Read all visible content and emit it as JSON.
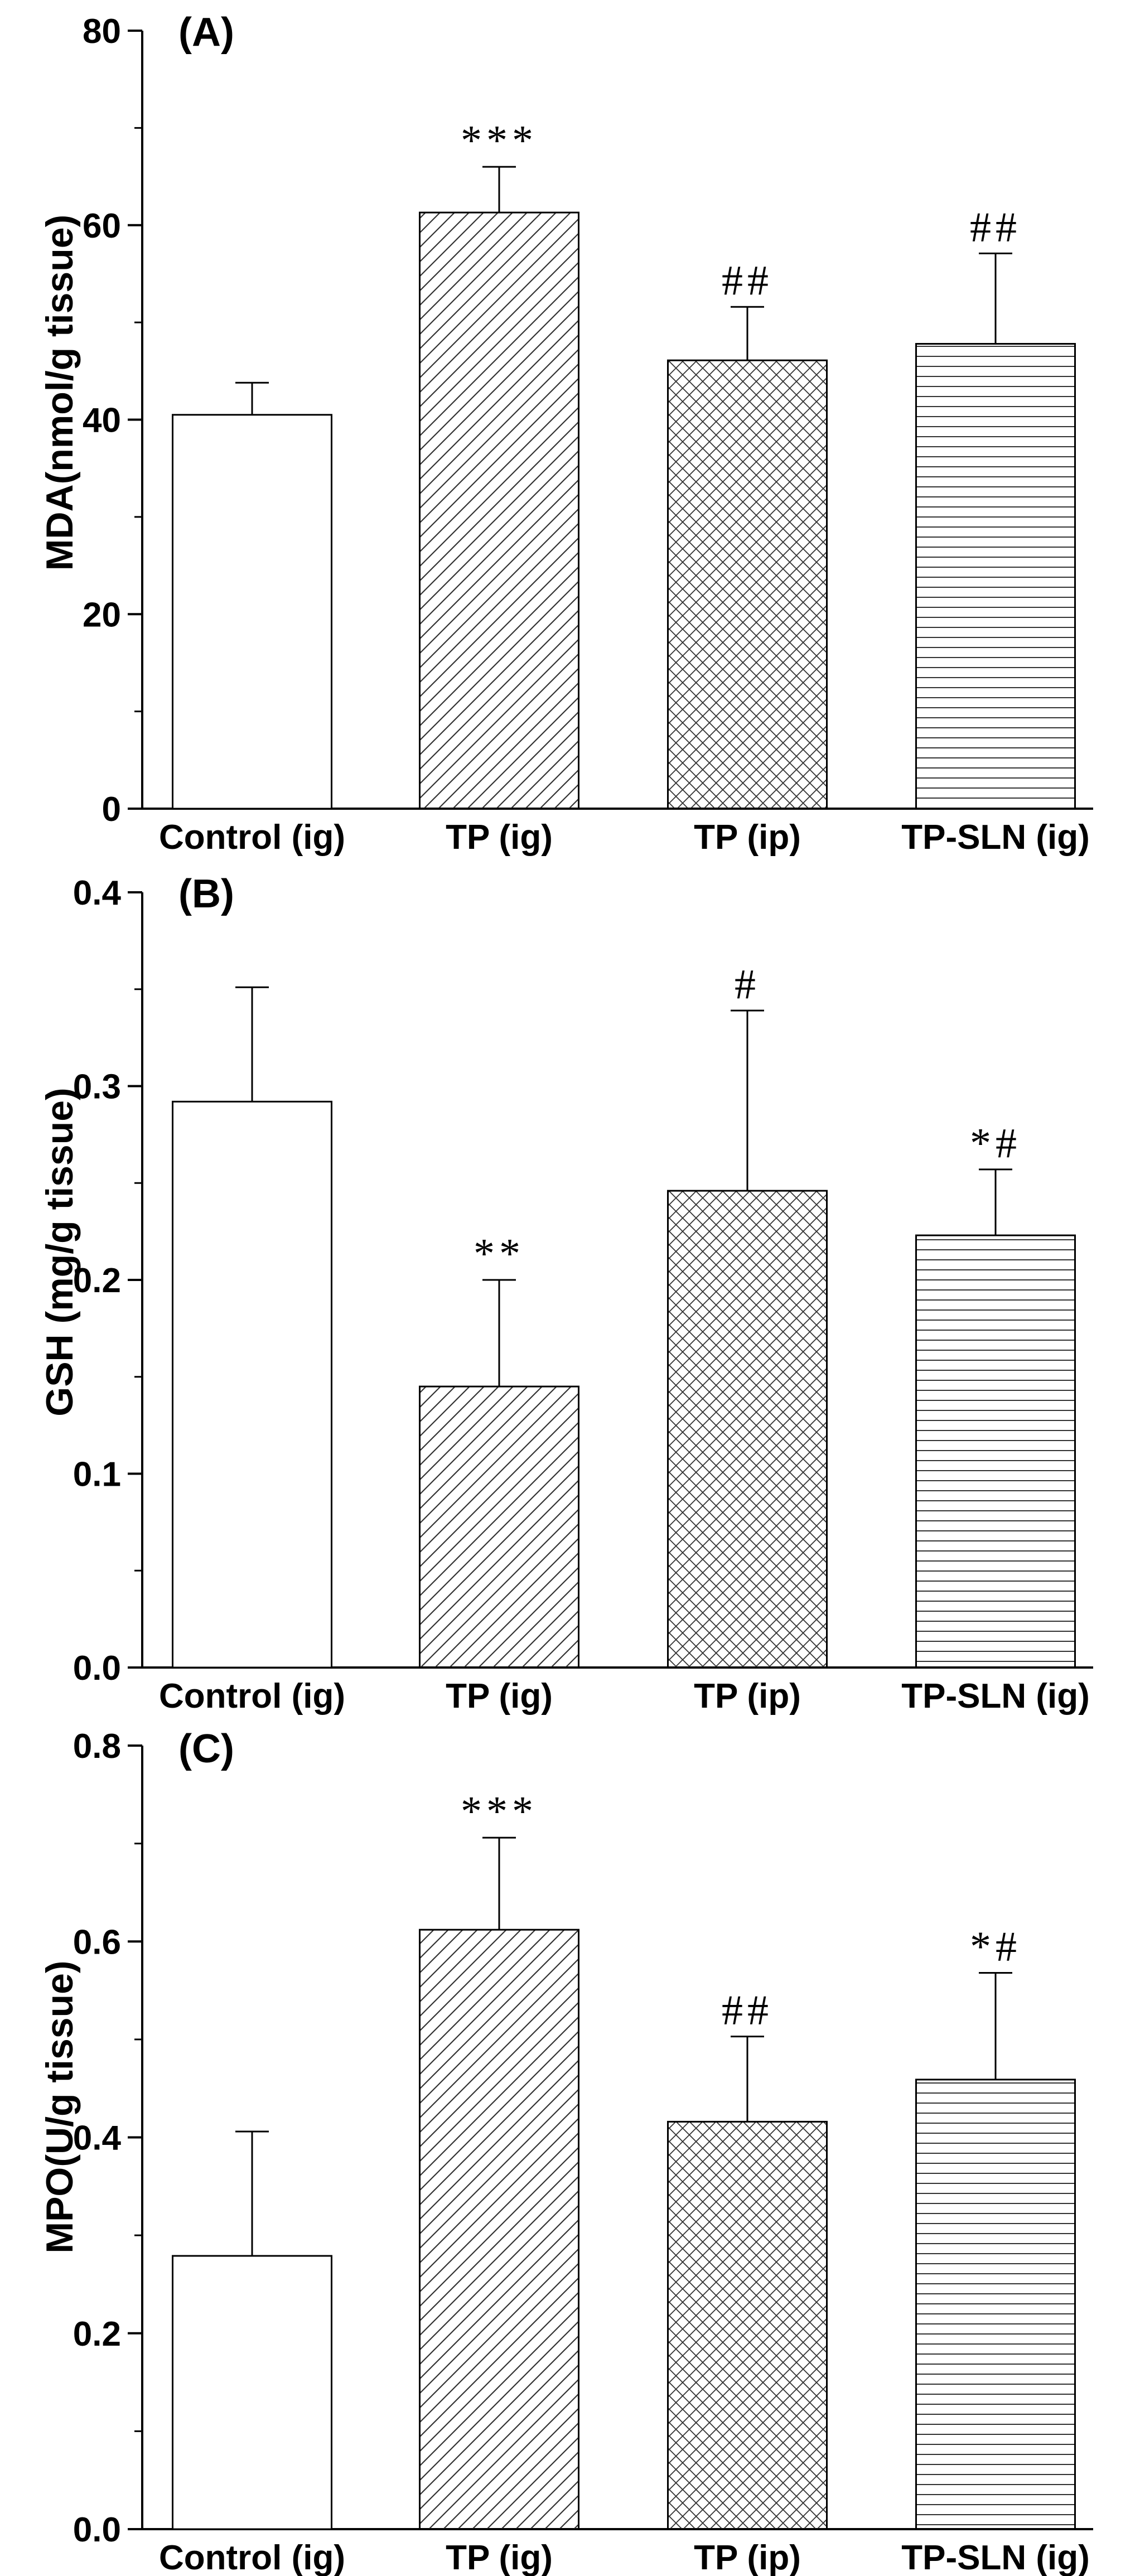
{
  "chart_data": [
    {
      "type": "bar",
      "panel": "(A)",
      "ylabel": "MDA(nmol/g tissue)",
      "ylim": [
        0,
        80
      ],
      "yticks": [
        0,
        20,
        40,
        60,
        80
      ],
      "ytick_labels": [
        "0",
        "20",
        "40",
        "60",
        "80"
      ],
      "minor_step": 10,
      "categories": [
        "Control (ig)",
        "TP (ig)",
        "TP (ip)",
        "TP-SLN (ig)"
      ],
      "values": [
        40.5,
        61.3,
        46.1,
        47.8
      ],
      "errors": [
        3.3,
        4.7,
        5.5,
        9.3
      ],
      "annotations": [
        "",
        "***",
        "##",
        "##"
      ]
    },
    {
      "type": "bar",
      "panel": "(B)",
      "ylabel": "GSH (mg/g tissue)",
      "ylim": [
        0,
        0.4
      ],
      "yticks": [
        0,
        0.1,
        0.2,
        0.3,
        0.4
      ],
      "ytick_labels": [
        "0.0",
        "0.1",
        "0.2",
        "0.3",
        "0.4"
      ],
      "minor_step": 0.05,
      "categories": [
        "Control (ig)",
        "TP (ig)",
        "TP (ip)",
        "TP-SLN (ig)"
      ],
      "values": [
        0.292,
        0.145,
        0.246,
        0.223
      ],
      "errors": [
        0.059,
        0.055,
        0.093,
        0.034
      ],
      "annotations": [
        "",
        "**",
        "#",
        "*#"
      ]
    },
    {
      "type": "bar",
      "panel": "(C)",
      "ylabel": "MPO(U/g tissue)",
      "ylim": [
        0,
        0.8
      ],
      "yticks": [
        0,
        0.2,
        0.4,
        0.6,
        0.8
      ],
      "ytick_labels": [
        "0.0",
        "0.2",
        "0.4",
        "0.6",
        "0.8"
      ],
      "minor_step": 0.1,
      "categories": [
        "Control (ig)",
        "TP (ig)",
        "TP (ip)",
        "TP-SLN (ig)"
      ],
      "values": [
        0.279,
        0.612,
        0.416,
        0.459
      ],
      "errors": [
        0.127,
        0.094,
        0.087,
        0.109
      ],
      "annotations": [
        "",
        "***",
        "##",
        "*#"
      ]
    }
  ]
}
